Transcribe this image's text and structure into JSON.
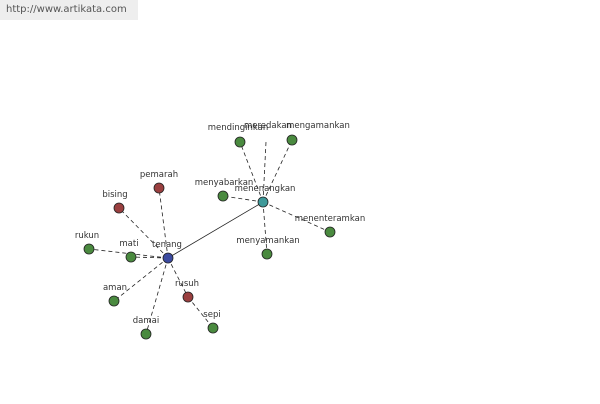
{
  "watermark": "http://www.artikata.com",
  "nodes": [
    {
      "label": "tenang",
      "color": "#3b4aa0"
    },
    {
      "label": "menenangkan",
      "color": "#3f9a9a"
    },
    {
      "label": "pemarah",
      "color": "#9a3f3f"
    },
    {
      "label": "bising",
      "color": "#9a3f3f"
    },
    {
      "label": "rukun",
      "color": "#4a8a3f"
    },
    {
      "label": "mati",
      "color": "#4a8a3f"
    },
    {
      "label": "aman",
      "color": "#4a8a3f"
    },
    {
      "label": "damai",
      "color": "#4a8a3f"
    },
    {
      "label": "rusuh",
      "color": "#9a3f3f"
    },
    {
      "label": "sepi",
      "color": "#4a8a3f"
    },
    {
      "label": "mendinginkan",
      "color": "#4a8a3f"
    },
    {
      "label": "meredakan",
      "color": "#4a8a3f"
    },
    {
      "label": "mengamankan",
      "color": "#4a8a3f"
    },
    {
      "label": "menyabarkan",
      "color": "#4a8a3f"
    },
    {
      "label": "menenteramkan",
      "color": "#4a8a3f"
    },
    {
      "label": "menyamankan",
      "color": "#4a8a3f"
    }
  ]
}
